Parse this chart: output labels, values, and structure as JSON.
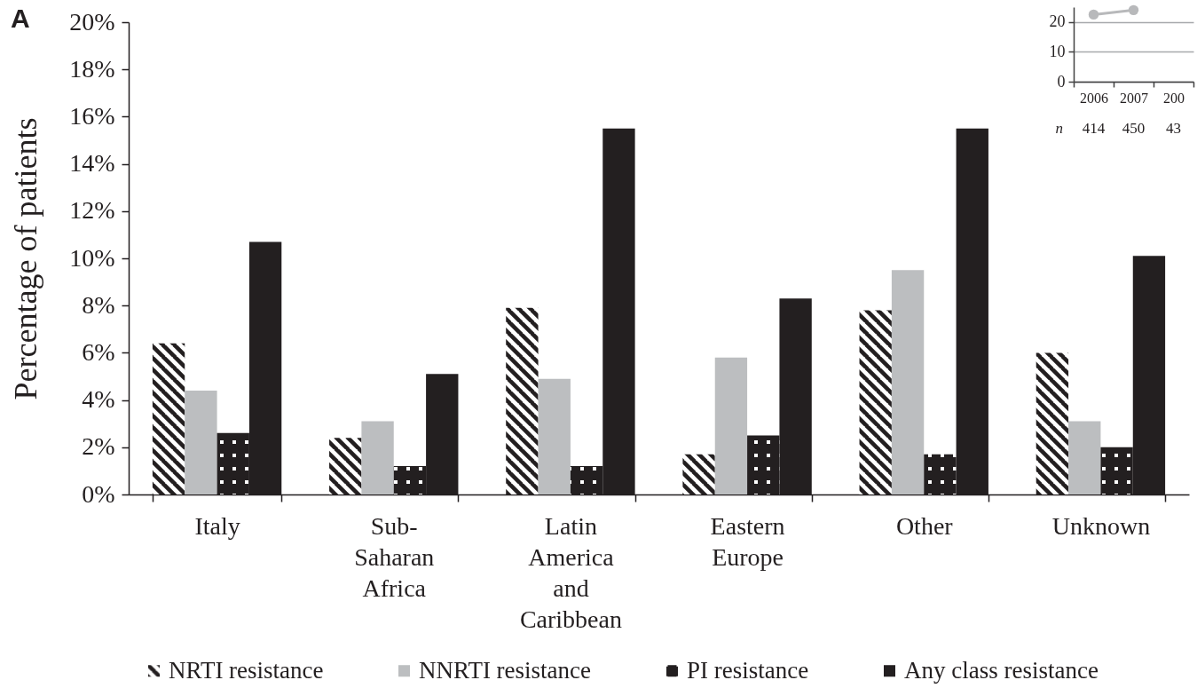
{
  "chart_data": [
    {
      "type": "bar",
      "title": "A",
      "ylabel": "Percentage of patients",
      "categories": [
        "Italy",
        "Sub-Saharan Africa",
        "Latin America and Caribbean",
        "Eastern Europe",
        "Other",
        "Unknown"
      ],
      "series": [
        {
          "name": "NRTI resistance",
          "color": "#231f20",
          "values": [
            6.4,
            2.4,
            7.9,
            1.7,
            7.8,
            6.0
          ]
        },
        {
          "name": "NNRTI resistance",
          "color": "#bcbec0",
          "values": [
            4.4,
            3.1,
            4.9,
            5.8,
            9.5,
            3.1
          ]
        },
        {
          "name": "PI resistance",
          "color": "#231f20",
          "values": [
            2.6,
            1.2,
            1.2,
            2.5,
            1.7,
            2.0
          ]
        },
        {
          "name": "Any class resistance",
          "color": "#231f20",
          "values": [
            10.7,
            5.1,
            15.5,
            8.3,
            15.5,
            10.1
          ]
        }
      ],
      "ylim": [
        0,
        20
      ],
      "yticks": [
        {
          "value": 0,
          "label": "0%"
        },
        {
          "value": 2,
          "label": "2%"
        },
        {
          "value": 4,
          "label": "4%"
        },
        {
          "value": 6,
          "label": "6%"
        },
        {
          "value": 8,
          "label": "8%"
        },
        {
          "value": 10,
          "label": "10%"
        },
        {
          "value": 12,
          "label": "12%"
        },
        {
          "value": 14,
          "label": "14%"
        },
        {
          "value": 16,
          "label": "16%"
        },
        {
          "value": 18,
          "label": "18%"
        },
        {
          "value": 20,
          "label": "20%"
        }
      ],
      "legend": "bottom"
    },
    {
      "type": "line",
      "categories": [
        "2006",
        "2007",
        "200"
      ],
      "series": [
        {
          "color": "#b8b9bb",
          "values": [
            22.5,
            24,
            null
          ]
        }
      ],
      "ylim": [
        0,
        25
      ],
      "yticks": [
        0,
        10,
        20
      ],
      "grid": "y",
      "marker": "circle",
      "annotations": [
        "n",
        "414",
        "450",
        "43"
      ]
    }
  ]
}
